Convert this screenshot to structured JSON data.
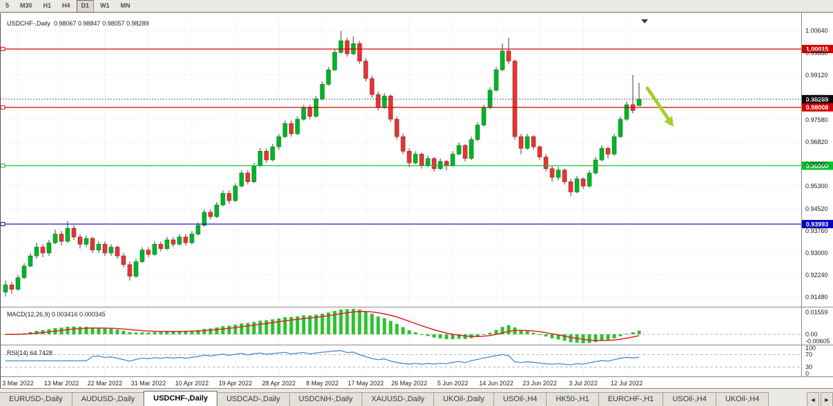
{
  "toolbar": {
    "periods": [
      "5",
      "M30",
      "H1",
      "H4",
      "D1",
      "W1",
      "MN"
    ],
    "active_period": "D1"
  },
  "chart": {
    "title_line": "USDCHF-,Daily  0.98067 0.98847 0.98057 0.98289",
    "symbol": "USDCHF-",
    "period": "Daily",
    "open": "0.98067",
    "high": "0.98847",
    "low": "0.98057",
    "close": "0.98289",
    "price_axis_labels": [
      "1.00640",
      "0.99880",
      "0.99120",
      "0.98360",
      "0.97580",
      "0.96820",
      "0.96060",
      "0.95300",
      "0.94520",
      "0.93760",
      "0.93000",
      "0.92240",
      "0.91480"
    ],
    "y_min": 0.9115,
    "y_max": 1.0125,
    "hlines": [
      {
        "price": 1.00015,
        "label": "1.00015",
        "color": "#d40000"
      },
      {
        "price": 0.98008,
        "label": "0.98008",
        "color": "#d40000"
      },
      {
        "price": 0.96,
        "label": "0.96000",
        "color": "#00c22a"
      },
      {
        "price": 0.93993,
        "label": "0.93993",
        "color": "#0000bb"
      }
    ],
    "bid_line": {
      "price": 0.98289,
      "label": "0.98289",
      "color": "#000000"
    },
    "arrow_object": {
      "color": "#a6cf2d",
      "direction": "down-right"
    },
    "colors": {
      "bull": "#00b42a",
      "bear": "#e53535",
      "wick": "#3c3c3c",
      "grid": "#d9d9d9",
      "separator": "#8c8a84"
    }
  },
  "chart_data": {
    "type": "candlestick",
    "title": "USDCHF-,Daily",
    "x_dates": [
      "3 Mar 2022",
      "13 Mar 2022",
      "22 Mar 2022",
      "31 Mar 2022",
      "10 Apr 2022",
      "19 Apr 2022",
      "28 Apr 2022",
      "8 May 2022",
      "17 May 2022",
      "26 May 2022",
      "5 Jun 2022",
      "14 Jun 2022",
      "23 Jun 2022",
      "3 Jul 2022",
      "12 Jul 2022"
    ],
    "tick_first_index": 2,
    "tick_step": 7,
    "ylim": [
      0.9115,
      1.0125
    ],
    "candles": [
      [
        0.9165,
        0.9205,
        0.915,
        0.919
      ],
      [
        0.919,
        0.92,
        0.916,
        0.9175
      ],
      [
        0.9175,
        0.9225,
        0.917,
        0.9215
      ],
      [
        0.9215,
        0.9265,
        0.921,
        0.9255
      ],
      [
        0.9255,
        0.93,
        0.925,
        0.929
      ],
      [
        0.929,
        0.9335,
        0.928,
        0.932
      ],
      [
        0.932,
        0.933,
        0.9285,
        0.93
      ],
      [
        0.93,
        0.9345,
        0.929,
        0.9335
      ],
      [
        0.9335,
        0.938,
        0.933,
        0.9365
      ],
      [
        0.9365,
        0.9375,
        0.9325,
        0.934
      ],
      [
        0.934,
        0.941,
        0.9335,
        0.9385
      ],
      [
        0.9385,
        0.9395,
        0.9345,
        0.9355
      ],
      [
        0.9355,
        0.9365,
        0.9315,
        0.933
      ],
      [
        0.933,
        0.936,
        0.932,
        0.935
      ],
      [
        0.935,
        0.9355,
        0.93,
        0.931
      ],
      [
        0.931,
        0.934,
        0.93,
        0.933
      ],
      [
        0.933,
        0.934,
        0.929,
        0.93
      ],
      [
        0.93,
        0.933,
        0.929,
        0.932
      ],
      [
        0.932,
        0.9325,
        0.928,
        0.929
      ],
      [
        0.929,
        0.93,
        0.925,
        0.926
      ],
      [
        0.926,
        0.927,
        0.9205,
        0.922
      ],
      [
        0.922,
        0.928,
        0.9215,
        0.927
      ],
      [
        0.927,
        0.932,
        0.9265,
        0.931
      ],
      [
        0.931,
        0.932,
        0.9285,
        0.9295
      ],
      [
        0.9295,
        0.934,
        0.929,
        0.933
      ],
      [
        0.933,
        0.934,
        0.9305,
        0.9315
      ],
      [
        0.9315,
        0.9355,
        0.931,
        0.9345
      ],
      [
        0.9345,
        0.9355,
        0.932,
        0.933
      ],
      [
        0.933,
        0.9365,
        0.9325,
        0.9355
      ],
      [
        0.9355,
        0.9365,
        0.9325,
        0.9335
      ],
      [
        0.9335,
        0.9375,
        0.933,
        0.9365
      ],
      [
        0.9365,
        0.9405,
        0.936,
        0.9395
      ],
      [
        0.9395,
        0.945,
        0.939,
        0.944
      ],
      [
        0.944,
        0.945,
        0.9415,
        0.9425
      ],
      [
        0.9425,
        0.9475,
        0.942,
        0.9465
      ],
      [
        0.9465,
        0.9515,
        0.946,
        0.9505
      ],
      [
        0.9505,
        0.9515,
        0.947,
        0.948
      ],
      [
        0.948,
        0.954,
        0.9475,
        0.953
      ],
      [
        0.953,
        0.9585,
        0.9525,
        0.9575
      ],
      [
        0.9575,
        0.9585,
        0.9535,
        0.9545
      ],
      [
        0.9545,
        0.961,
        0.954,
        0.96
      ],
      [
        0.96,
        0.966,
        0.9595,
        0.965
      ],
      [
        0.965,
        0.966,
        0.961,
        0.962
      ],
      [
        0.962,
        0.9675,
        0.9615,
        0.9665
      ],
      [
        0.9665,
        0.971,
        0.9655,
        0.97
      ],
      [
        0.97,
        0.9755,
        0.9695,
        0.9745
      ],
      [
        0.9745,
        0.9755,
        0.97,
        0.971
      ],
      [
        0.971,
        0.977,
        0.9705,
        0.976
      ],
      [
        0.976,
        0.981,
        0.9755,
        0.98
      ],
      [
        0.98,
        0.981,
        0.976,
        0.977
      ],
      [
        0.977,
        0.984,
        0.9765,
        0.983
      ],
      [
        0.983,
        0.989,
        0.9825,
        0.988
      ],
      [
        0.988,
        0.994,
        0.9875,
        0.993
      ],
      [
        0.993,
        1.0,
        0.9925,
        0.999
      ],
      [
        0.999,
        1.0064,
        0.9985,
        1.003
      ],
      [
        1.003,
        1.004,
        0.9975,
        0.9985
      ],
      [
        0.9985,
        1.0045,
        0.998,
        1.002
      ],
      [
        1.002,
        1.003,
        0.995,
        0.996
      ],
      [
        0.996,
        0.997,
        0.989,
        0.99
      ],
      [
        0.99,
        0.991,
        0.9835,
        0.9845
      ],
      [
        0.9845,
        0.9855,
        0.979,
        0.98
      ],
      [
        0.98,
        0.985,
        0.9795,
        0.984
      ],
      [
        0.984,
        0.9845,
        0.975,
        0.976
      ],
      [
        0.976,
        0.977,
        0.969,
        0.97
      ],
      [
        0.97,
        0.971,
        0.964,
        0.965
      ],
      [
        0.965,
        0.966,
        0.9595,
        0.961
      ],
      [
        0.961,
        0.965,
        0.9605,
        0.964
      ],
      [
        0.964,
        0.9645,
        0.959,
        0.96
      ],
      [
        0.96,
        0.9635,
        0.9595,
        0.9625
      ],
      [
        0.9625,
        0.963,
        0.958,
        0.959
      ],
      [
        0.959,
        0.9625,
        0.9585,
        0.9615
      ],
      [
        0.9615,
        0.962,
        0.9585,
        0.96
      ],
      [
        0.96,
        0.965,
        0.9595,
        0.964
      ],
      [
        0.964,
        0.968,
        0.9635,
        0.967
      ],
      [
        0.967,
        0.9675,
        0.9615,
        0.9625
      ],
      [
        0.9625,
        0.97,
        0.962,
        0.969
      ],
      [
        0.969,
        0.975,
        0.9685,
        0.974
      ],
      [
        0.974,
        0.981,
        0.9735,
        0.98
      ],
      [
        0.98,
        0.987,
        0.9795,
        0.986
      ],
      [
        0.986,
        0.994,
        0.9855,
        0.993
      ],
      [
        0.993,
        1.002,
        0.9925,
        0.9995
      ],
      [
        0.9995,
        1.004,
        0.995,
        0.996
      ],
      [
        0.996,
        0.9965,
        0.969,
        0.97
      ],
      [
        0.97,
        0.971,
        0.964,
        0.966
      ],
      [
        0.966,
        0.971,
        0.9655,
        0.97
      ],
      [
        0.97,
        0.9705,
        0.9655,
        0.9665
      ],
      [
        0.9665,
        0.967,
        0.962,
        0.963
      ],
      [
        0.963,
        0.964,
        0.958,
        0.959
      ],
      [
        0.959,
        0.96,
        0.9545,
        0.956
      ],
      [
        0.956,
        0.9595,
        0.955,
        0.9585
      ],
      [
        0.9585,
        0.959,
        0.9535,
        0.9545
      ],
      [
        0.9545,
        0.9555,
        0.9495,
        0.951
      ],
      [
        0.951,
        0.9565,
        0.9505,
        0.9555
      ],
      [
        0.9555,
        0.956,
        0.952,
        0.953
      ],
      [
        0.953,
        0.9585,
        0.9525,
        0.9575
      ],
      [
        0.9575,
        0.963,
        0.957,
        0.962
      ],
      [
        0.962,
        0.967,
        0.9615,
        0.966
      ],
      [
        0.966,
        0.9665,
        0.9625,
        0.964
      ],
      [
        0.964,
        0.971,
        0.9635,
        0.97
      ],
      [
        0.97,
        0.977,
        0.9695,
        0.976
      ],
      [
        0.976,
        0.982,
        0.9755,
        0.981
      ],
      [
        0.981,
        0.9912,
        0.978,
        0.979
      ],
      [
        0.98067,
        0.98847,
        0.98057,
        0.98289
      ]
    ],
    "horizontal_levels": [
      1.00015,
      0.98008,
      0.96,
      0.93993
    ],
    "current_bid": 0.98289
  },
  "macd": {
    "label": "MACD(12,26,9) 0.003416 0.000345",
    "params": [
      12,
      26,
      9
    ],
    "value_main": "0.003416",
    "value_signal": "0.000345",
    "axis_labels": {
      "top": "0.01559",
      "zero": "0.00",
      "bottom": "-0.00605"
    },
    "histogram_color": "#2fc12f",
    "signal_color": "#dd2222"
  },
  "rsi": {
    "label": "RSI(14) 64.7428",
    "period": 14,
    "value": "64.7428",
    "axis_labels": [
      "100",
      "70",
      "30",
      "0"
    ],
    "levels": [
      70,
      30
    ],
    "line_color": "#4a86c8"
  },
  "tabs": {
    "items": [
      "EURUSD-,Daily",
      "AUDUSD-,Daily",
      "USDCHF-,Daily",
      "USDCAD-,Daily",
      "USDCNH-,Daily",
      "XAUUSD-,Daily",
      "UKOil-,Daily",
      "USOil-,H4",
      "HK50-,H1",
      "EURCHF-,H1",
      "USOil-,H4",
      "UKOil-,H4"
    ],
    "active_index": 2
  }
}
